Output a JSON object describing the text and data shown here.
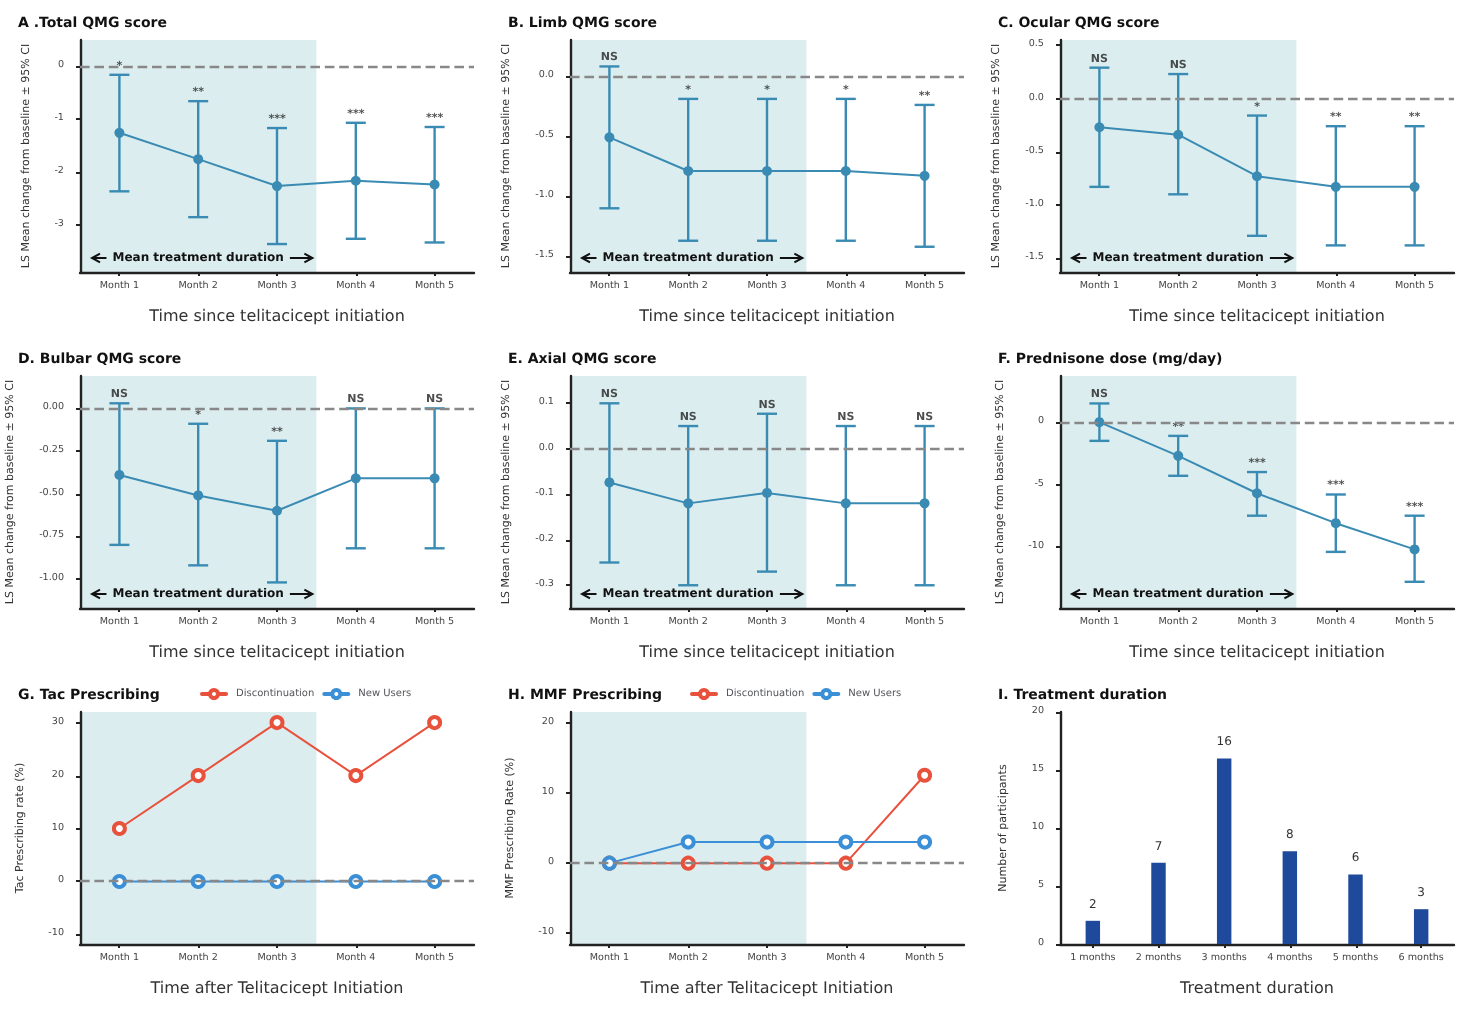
{
  "chart_data": [
    {
      "type": "line",
      "title": "A .Total QMG score",
      "xlabel": "Time since telitacicept initiation",
      "ylabel": "LS Mean change from baseline ± 95% CI",
      "categories": [
        "Month 1",
        "Month 2",
        "Month 3",
        "Month 4",
        "Month 5"
      ],
      "values": [
        -1.26,
        -1.76,
        -2.27,
        -2.17,
        -2.24
      ],
      "errors": [
        [
          -2.37,
          -0.16
        ],
        [
          -2.86,
          -0.66
        ],
        [
          -3.37,
          -1.17
        ],
        [
          -3.27,
          -1.07
        ],
        [
          -3.34,
          -1.15
        ]
      ],
      "color": "#3a8bb3",
      "marker": "circle",
      "ylim": [
        -3.9,
        0.5
      ],
      "yticks": [
        -3,
        -2,
        -1,
        0
      ],
      "ref_lines": [
        {
          "axis": "y",
          "value": 0,
          "color": "#888888",
          "line_style": "dashed"
        }
      ],
      "bands": [
        {
          "axis": "x",
          "from": "Month 1",
          "to": "Month 3",
          "label": "Mean treatment duration",
          "color": "#dcedef"
        }
      ],
      "annotations": [
        {
          "text": "*",
          "x": "Month 1",
          "y": -0.16
        },
        {
          "text": "**",
          "x": "Month 2",
          "y": -0.66
        },
        {
          "text": "***",
          "x": "Month 3",
          "y": -1.17
        },
        {
          "text": "***",
          "x": "Month 4",
          "y": -1.07
        },
        {
          "text": "***",
          "x": "Month 5",
          "y": -1.15
        }
      ]
    },
    {
      "type": "line",
      "title": "B. Limb QMG score",
      "xlabel": "Time since telitacicept initiation",
      "ylabel": "LS Mean change from baseline ± 95% CI",
      "categories": [
        "Month 1",
        "Month 2",
        "Month 3",
        "Month 4",
        "Month 5"
      ],
      "values": [
        -0.51,
        -0.79,
        -0.79,
        -0.79,
        -0.83
      ],
      "errors": [
        [
          -1.1,
          0.08
        ],
        [
          -1.37,
          -0.19
        ],
        [
          -1.37,
          -0.19
        ],
        [
          -1.37,
          -0.19
        ],
        [
          -1.42,
          -0.24
        ]
      ],
      "color": "#3a8bb3",
      "marker": "circle",
      "ylim": [
        -1.63,
        0.3
      ],
      "yticks": [
        {
          "value": -1.5,
          "label": "-1.5"
        },
        {
          "value": -1,
          "label": "-1.0"
        },
        {
          "value": -0.5,
          "label": "-0.5"
        },
        {
          "value": 0,
          "label": "0.0"
        }
      ],
      "ref_lines": [
        {
          "axis": "y",
          "value": 0,
          "color": "#888888",
          "line_style": "dashed"
        }
      ],
      "bands": [
        {
          "axis": "x",
          "from": "Month 1",
          "to": "Month 3",
          "label": "Mean treatment duration",
          "color": "#dcedef"
        }
      ],
      "annotations": [
        {
          "text": "NS",
          "x": "Month 1",
          "y": 0.08
        },
        {
          "text": "*",
          "x": "Month 2",
          "y": -0.19
        },
        {
          "text": "*",
          "x": "Month 3",
          "y": -0.19
        },
        {
          "text": "*",
          "x": "Month 4",
          "y": -0.19
        },
        {
          "text": "**",
          "x": "Month 5",
          "y": -0.24
        }
      ]
    },
    {
      "type": "line",
      "title": "C. Ocular QMG score",
      "xlabel": "Time since telitacicept initiation",
      "ylabel": "LS Mean change from baseline ± 95% CI",
      "categories": [
        "Month 1",
        "Month 2",
        "Month 3",
        "Month 4",
        "Month 5"
      ],
      "values": [
        -0.27,
        -0.34,
        -0.73,
        -0.83,
        -0.83
      ],
      "errors": [
        [
          -0.83,
          0.29
        ],
        [
          -0.9,
          0.23
        ],
        [
          -1.29,
          -0.16
        ],
        [
          -1.38,
          -0.26
        ],
        [
          -1.38,
          -0.26
        ]
      ],
      "color": "#3a8bb3",
      "marker": "circle",
      "ylim": [
        -1.63,
        0.55
      ],
      "yticks": [
        {
          "value": -1.5,
          "label": "-1.5"
        },
        {
          "value": -1,
          "label": "-1.0"
        },
        {
          "value": -0.5,
          "label": "-0.5"
        },
        {
          "value": 0,
          "label": "0.0"
        },
        {
          "value": 0.5,
          "label": "0.5"
        }
      ],
      "ref_lines": [
        {
          "axis": "y",
          "value": 0,
          "color": "#888888",
          "line_style": "dashed"
        }
      ],
      "bands": [
        {
          "axis": "x",
          "from": "Month 1",
          "to": "Month 3",
          "label": "Mean treatment duration",
          "color": "#dcedef"
        }
      ],
      "annotations": [
        {
          "text": "NS",
          "x": "Month 1",
          "y": 0.29
        },
        {
          "text": "NS",
          "x": "Month 2",
          "y": 0.23
        },
        {
          "text": "*",
          "x": "Month 3",
          "y": -0.16
        },
        {
          "text": "**",
          "x": "Month 4",
          "y": -0.26
        },
        {
          "text": "**",
          "x": "Month 5",
          "y": -0.26
        }
      ]
    },
    {
      "type": "line",
      "title": "D. Bulbar QMG score",
      "xlabel": "Time since telitacicept initiation",
      "ylabel": "LS Mean change from baseline ± 95% CI",
      "categories": [
        "Month 1",
        "Month 2",
        "Month 3",
        "Month 4",
        "Month 5"
      ],
      "values": [
        -0.39,
        -0.51,
        -0.6,
        -0.41,
        -0.41
      ],
      "errors": [
        [
          -0.8,
          0.03
        ],
        [
          -0.92,
          -0.09
        ],
        [
          -1.02,
          -0.19
        ],
        [
          -0.82,
          0
        ],
        [
          -0.82,
          0
        ]
      ],
      "color": "#3a8bb3",
      "marker": "circle",
      "ylim": [
        -1.17,
        0.19
      ],
      "yticks": [
        {
          "value": -1,
          "label": "-1.00"
        },
        {
          "value": -0.75,
          "label": "-0.75"
        },
        {
          "value": -0.5,
          "label": "-0.50"
        },
        {
          "value": -0.25,
          "label": "-0.25"
        },
        {
          "value": 0,
          "label": "0.00"
        }
      ],
      "ref_lines": [
        {
          "axis": "y",
          "value": 0,
          "color": "#888888",
          "line_style": "dashed"
        }
      ],
      "bands": [
        {
          "axis": "x",
          "from": "Month 1",
          "to": "Month 3",
          "label": "Mean treatment duration",
          "color": "#dcedef"
        }
      ],
      "annotations": [
        {
          "text": "NS",
          "x": "Month 1",
          "y": 0.03
        },
        {
          "text": "*",
          "x": "Month 2",
          "y": -0.09
        },
        {
          "text": "**",
          "x": "Month 3",
          "y": -0.19
        },
        {
          "text": "NS",
          "x": "Month 4",
          "y": 0
        },
        {
          "text": "NS",
          "x": "Month 5",
          "y": 0
        }
      ]
    },
    {
      "type": "line",
      "title": "E. Axial QMG score",
      "xlabel": "Time since telitacicept initiation",
      "ylabel": "LS Mean change from baseline ± 95% CI",
      "categories": [
        "Month 1",
        "Month 2",
        "Month 3",
        "Month 4",
        "Month 5"
      ],
      "values": [
        -0.074,
        -0.12,
        -0.097,
        -0.12,
        -0.12
      ],
      "errors": [
        [
          -0.25,
          0.1
        ],
        [
          -0.3,
          0.05
        ],
        [
          -0.27,
          0.077
        ],
        [
          -0.3,
          0.05
        ],
        [
          -0.3,
          0.05
        ]
      ],
      "color": "#3a8bb3",
      "marker": "circle",
      "ylim": [
        -0.35,
        0.16
      ],
      "yticks": [
        -0.3,
        -0.2,
        -0.1,
        {
          "value": 0,
          "label": "0.0"
        },
        0.1
      ],
      "ref_lines": [
        {
          "axis": "y",
          "value": 0,
          "color": "#888888",
          "line_style": "dashed"
        }
      ],
      "bands": [
        {
          "axis": "x",
          "from": "Month 1",
          "to": "Month 3",
          "label": "Mean treatment duration",
          "color": "#dcedef"
        }
      ],
      "annotations": [
        {
          "text": "NS",
          "x": "Month 1",
          "y": 0.1
        },
        {
          "text": "NS",
          "x": "Month 2",
          "y": 0.05
        },
        {
          "text": "NS",
          "x": "Month 3",
          "y": 0.077
        },
        {
          "text": "NS",
          "x": "Month 4",
          "y": 0.05
        },
        {
          "text": "NS",
          "x": "Month 5",
          "y": 0.05
        }
      ]
    },
    {
      "type": "line",
      "title": "F. Prednisone dose (mg/day)",
      "xlabel": "Time since telitacicept initiation",
      "ylabel": "LS Mean change from baseline ± 95% CI",
      "categories": [
        "Month 1",
        "Month 2",
        "Month 3",
        "Month 4",
        "Month 5"
      ],
      "values": [
        0,
        -2.7,
        -5.7,
        -8.1,
        -10.2
      ],
      "errors": [
        [
          -1.5,
          1.5
        ],
        [
          -4.3,
          -1.1
        ],
        [
          -7.5,
          -4
        ],
        [
          -10.4,
          -5.8
        ],
        [
          -12.8,
          -7.5
        ]
      ],
      "color": "#3a8bb3",
      "marker": "circle",
      "ylim": [
        -14.9,
        3.7
      ],
      "yticks": [
        -10,
        -5,
        0
      ],
      "ref_lines": [
        {
          "axis": "y",
          "value": 0,
          "color": "#888888",
          "line_style": "dashed"
        }
      ],
      "bands": [
        {
          "axis": "x",
          "from": "Month 1",
          "to": "Month 3",
          "label": "Mean treatment duration",
          "color": "#dcedef"
        }
      ],
      "annotations": [
        {
          "text": "NS",
          "x": "Month 1",
          "y": 1.5
        },
        {
          "text": "**",
          "x": "Month 2",
          "y": -1.1
        },
        {
          "text": "***",
          "x": "Month 3",
          "y": -4
        },
        {
          "text": "***",
          "x": "Month 4",
          "y": -5.8
        },
        {
          "text": "***",
          "x": "Month 5",
          "y": -7.5
        }
      ]
    },
    {
      "type": "line",
      "title": "G. Tac Prescribing",
      "xlabel": "Time after Telitacicept Initiation",
      "ylabel": "Tac Prescribing rate (%)",
      "categories": [
        "Month 1",
        "Month 2",
        "Month 3",
        "Month 4",
        "Month 5"
      ],
      "series": [
        {
          "name": "Discontinuation",
          "color": "#e8513c",
          "values": [
            10,
            20,
            30,
            20,
            30
          ]
        },
        {
          "name": "New Users",
          "color": "#3b8fd6",
          "values": [
            0,
            0,
            0,
            0,
            0
          ]
        }
      ],
      "marker": "circle",
      "legend": "top",
      "ylim": [
        -11.8,
        32
      ],
      "yticks": [
        -10,
        0,
        10,
        20,
        30
      ],
      "ref_lines": [
        {
          "axis": "y",
          "value": 0,
          "color": "#888888",
          "line_style": "dashed"
        }
      ],
      "bands": [
        {
          "axis": "x",
          "from": "Month 1",
          "to": "Month 3",
          "color": "#dcedef"
        }
      ]
    },
    {
      "type": "line",
      "title": "H. MMF Prescribing",
      "xlabel": "Time after Telitacicept Initiation",
      "ylabel": "MMF Prescribing Rate (%)",
      "categories": [
        "Month 1",
        "Month 2",
        "Month 3",
        "Month 4",
        "Month 5"
      ],
      "series": [
        {
          "name": "Discontinuation",
          "color": "#e8513c",
          "values": [
            0,
            0,
            0,
            0,
            12.5
          ]
        },
        {
          "name": "New Users",
          "color": "#3b8fd6",
          "values": [
            0,
            3,
            3,
            3,
            3
          ]
        }
      ],
      "marker": "circle",
      "legend": "top",
      "ylim": [
        -11.5,
        21.5
      ],
      "yticks": [
        -10,
        0,
        10,
        20
      ],
      "ref_lines": [
        {
          "axis": "y",
          "value": 0,
          "color": "#888888",
          "line_style": "dashed"
        }
      ],
      "bands": [
        {
          "axis": "x",
          "from": "Month 1",
          "to": "Month 3",
          "color": "#dcedef"
        }
      ]
    },
    {
      "type": "bar",
      "title": "I. Treatment duration",
      "xlabel": "Treatment duration",
      "ylabel": "Number of participants",
      "categories": [
        "1 months",
        "2 months",
        "3 months",
        "4 months",
        "5 months",
        "6 months"
      ],
      "values": [
        2,
        7,
        16,
        8,
        6,
        3
      ],
      "color": "#1f4a9c",
      "data_labels": true,
      "ylim": [
        0,
        20
      ],
      "yticks": [
        0,
        5,
        10,
        15,
        20
      ]
    }
  ]
}
